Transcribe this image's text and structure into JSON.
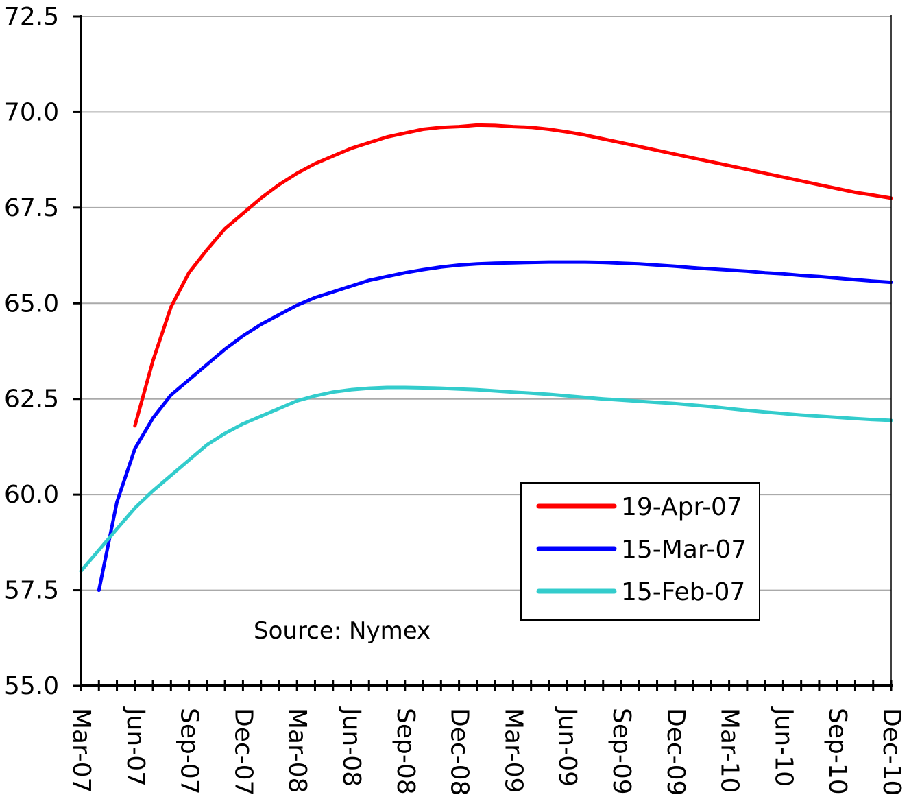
{
  "chart_data": {
    "type": "line",
    "title": "",
    "xlabel": "",
    "ylabel": "",
    "ylim": [
      55.0,
      72.5
    ],
    "yticks": [
      "55.0",
      "57.5",
      "60.0",
      "62.5",
      "65.0",
      "67.5",
      "70.0",
      "72.5"
    ],
    "xticks": [
      "Mar-07",
      "Jun-07",
      "Sep-07",
      "Dec-07",
      "Mar-08",
      "Jun-08",
      "Sep-08",
      "Dec-08",
      "Mar-09",
      "Jun-09",
      "Sep-09",
      "Dec-09",
      "Mar-10",
      "Jun-10",
      "Sep-10",
      "Dec-10"
    ],
    "x_range_months": [
      "Mar-07",
      "Dec-10"
    ],
    "grid": "horizontal",
    "legend_position": "lower-right",
    "annotation": "Source: Nymex",
    "series": [
      {
        "name": "19-Apr-07",
        "color": "#ff0000",
        "points": [
          [
            "Jun-07",
            61.8
          ],
          [
            "Jul-07",
            63.5
          ],
          [
            "Aug-07",
            64.9
          ],
          [
            "Sep-07",
            65.8
          ],
          [
            "Oct-07",
            66.4
          ],
          [
            "Nov-07",
            66.95
          ],
          [
            "Dec-07",
            67.35
          ],
          [
            "Jan-08",
            67.75
          ],
          [
            "Feb-08",
            68.1
          ],
          [
            "Mar-08",
            68.4
          ],
          [
            "Apr-08",
            68.65
          ],
          [
            "May-08",
            68.85
          ],
          [
            "Jun-08",
            69.05
          ],
          [
            "Jul-08",
            69.2
          ],
          [
            "Aug-08",
            69.35
          ],
          [
            "Sep-08",
            69.45
          ],
          [
            "Oct-08",
            69.55
          ],
          [
            "Nov-08",
            69.6
          ],
          [
            "Dec-08",
            69.62
          ],
          [
            "Jan-09",
            69.66
          ],
          [
            "Feb-09",
            69.65
          ],
          [
            "Mar-09",
            69.62
          ],
          [
            "Apr-09",
            69.6
          ],
          [
            "May-09",
            69.55
          ],
          [
            "Jun-09",
            69.48
          ],
          [
            "Jul-09",
            69.4
          ],
          [
            "Aug-09",
            69.3
          ],
          [
            "Sep-09",
            69.2
          ],
          [
            "Oct-09",
            69.1
          ],
          [
            "Nov-09",
            69.0
          ],
          [
            "Dec-09",
            68.9
          ],
          [
            "Jan-10",
            68.8
          ],
          [
            "Feb-10",
            68.7
          ],
          [
            "Mar-10",
            68.6
          ],
          [
            "Apr-10",
            68.5
          ],
          [
            "May-10",
            68.4
          ],
          [
            "Jun-10",
            68.3
          ],
          [
            "Jul-10",
            68.2
          ],
          [
            "Aug-10",
            68.1
          ],
          [
            "Sep-10",
            68.0
          ],
          [
            "Oct-10",
            67.9
          ],
          [
            "Nov-10",
            67.83
          ],
          [
            "Dec-10",
            67.75
          ]
        ]
      },
      {
        "name": "15-Mar-07",
        "color": "#0000ff",
        "points": [
          [
            "Apr-07",
            57.5
          ],
          [
            "May-07",
            59.8
          ],
          [
            "Jun-07",
            61.2
          ],
          [
            "Jul-07",
            62.0
          ],
          [
            "Aug-07",
            62.6
          ],
          [
            "Sep-07",
            63.0
          ],
          [
            "Oct-07",
            63.4
          ],
          [
            "Nov-07",
            63.8
          ],
          [
            "Dec-07",
            64.15
          ],
          [
            "Jan-08",
            64.45
          ],
          [
            "Feb-08",
            64.7
          ],
          [
            "Mar-08",
            64.95
          ],
          [
            "Apr-08",
            65.15
          ],
          [
            "May-08",
            65.3
          ],
          [
            "Jun-08",
            65.45
          ],
          [
            "Jul-08",
            65.6
          ],
          [
            "Aug-08",
            65.7
          ],
          [
            "Sep-08",
            65.8
          ],
          [
            "Oct-08",
            65.88
          ],
          [
            "Nov-08",
            65.95
          ],
          [
            "Dec-08",
            66.0
          ],
          [
            "Jan-09",
            66.03
          ],
          [
            "Feb-09",
            66.05
          ],
          [
            "Mar-09",
            66.06
          ],
          [
            "Apr-09",
            66.07
          ],
          [
            "May-09",
            66.08
          ],
          [
            "Jun-09",
            66.08
          ],
          [
            "Jul-09",
            66.08
          ],
          [
            "Aug-09",
            66.07
          ],
          [
            "Sep-09",
            66.05
          ],
          [
            "Oct-09",
            66.03
          ],
          [
            "Nov-09",
            66.0
          ],
          [
            "Dec-09",
            65.97
          ],
          [
            "Jan-10",
            65.93
          ],
          [
            "Feb-10",
            65.9
          ],
          [
            "Mar-10",
            65.87
          ],
          [
            "Apr-10",
            65.84
          ],
          [
            "May-10",
            65.8
          ],
          [
            "Jun-10",
            65.77
          ],
          [
            "Jul-10",
            65.73
          ],
          [
            "Aug-10",
            65.7
          ],
          [
            "Sep-10",
            65.66
          ],
          [
            "Oct-10",
            65.62
          ],
          [
            "Nov-10",
            65.58
          ],
          [
            "Dec-10",
            65.55
          ]
        ]
      },
      {
        "name": "15-Feb-07",
        "color": "#33cccc",
        "points": [
          [
            "Mar-07",
            58.0
          ],
          [
            "Apr-07",
            58.55
          ],
          [
            "May-07",
            59.1
          ],
          [
            "Jun-07",
            59.65
          ],
          [
            "Jul-07",
            60.1
          ],
          [
            "Aug-07",
            60.5
          ],
          [
            "Sep-07",
            60.9
          ],
          [
            "Oct-07",
            61.3
          ],
          [
            "Nov-07",
            61.6
          ],
          [
            "Dec-07",
            61.85
          ],
          [
            "Jan-08",
            62.05
          ],
          [
            "Feb-08",
            62.25
          ],
          [
            "Mar-08",
            62.45
          ],
          [
            "Apr-08",
            62.58
          ],
          [
            "May-08",
            62.68
          ],
          [
            "Jun-08",
            62.74
          ],
          [
            "Jul-08",
            62.78
          ],
          [
            "Aug-08",
            62.8
          ],
          [
            "Sep-08",
            62.8
          ],
          [
            "Oct-08",
            62.79
          ],
          [
            "Nov-08",
            62.78
          ],
          [
            "Dec-08",
            62.76
          ],
          [
            "Jan-09",
            62.74
          ],
          [
            "Feb-09",
            62.71
          ],
          [
            "Mar-09",
            62.68
          ],
          [
            "Apr-09",
            62.65
          ],
          [
            "May-09",
            62.62
          ],
          [
            "Jun-09",
            62.58
          ],
          [
            "Jul-09",
            62.54
          ],
          [
            "Aug-09",
            62.5
          ],
          [
            "Sep-09",
            62.47
          ],
          [
            "Oct-09",
            62.44
          ],
          [
            "Nov-09",
            62.41
          ],
          [
            "Dec-09",
            62.38
          ],
          [
            "Jan-10",
            62.34
          ],
          [
            "Feb-10",
            62.3
          ],
          [
            "Mar-10",
            62.25
          ],
          [
            "Apr-10",
            62.2
          ],
          [
            "May-10",
            62.16
          ],
          [
            "Jun-10",
            62.12
          ],
          [
            "Jul-10",
            62.08
          ],
          [
            "Aug-10",
            62.05
          ],
          [
            "Sep-10",
            62.02
          ],
          [
            "Oct-10",
            61.99
          ],
          [
            "Nov-10",
            61.96
          ],
          [
            "Dec-10",
            61.94
          ]
        ]
      }
    ]
  }
}
